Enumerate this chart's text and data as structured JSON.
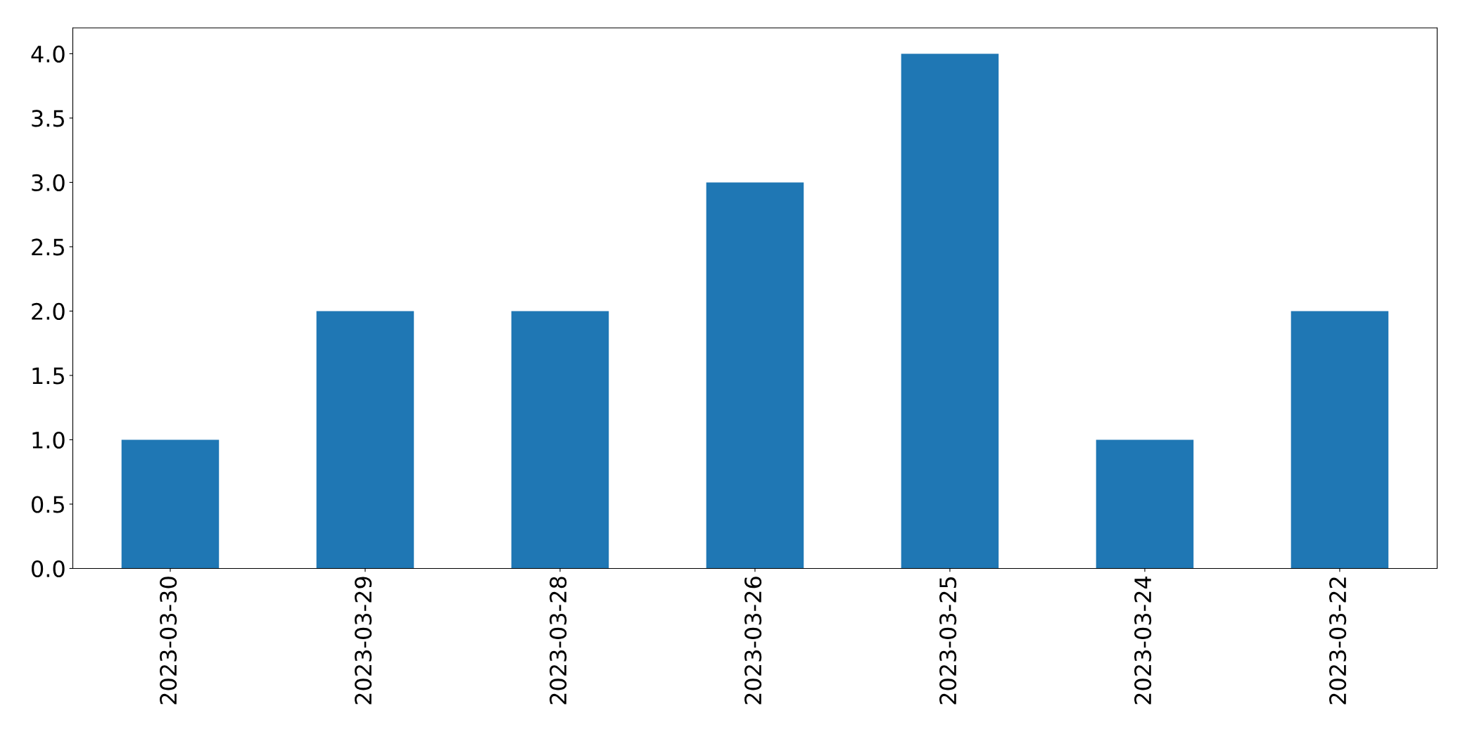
{
  "chart_data": {
    "type": "bar",
    "categories": [
      "2023-03-30",
      "2023-03-29",
      "2023-03-28",
      "2023-03-26",
      "2023-03-25",
      "2023-03-24",
      "2023-03-22"
    ],
    "values": [
      1,
      2,
      2,
      3,
      4,
      1,
      2
    ],
    "color": "#1f77b4",
    "ylim": [
      0,
      4.2
    ],
    "yticks": [
      {
        "value": 0,
        "label": "0.0"
      },
      {
        "value": 0.5,
        "label": "0.5"
      },
      {
        "value": 1,
        "label": "1.0"
      },
      {
        "value": 1.5,
        "label": "1.5"
      },
      {
        "value": 2,
        "label": "2.0"
      },
      {
        "value": 2.5,
        "label": "2.5"
      },
      {
        "value": 3,
        "label": "3.0"
      },
      {
        "value": 3.5,
        "label": "3.5"
      },
      {
        "value": 4,
        "label": "4.0"
      }
    ],
    "grid": false,
    "legend": false
  }
}
